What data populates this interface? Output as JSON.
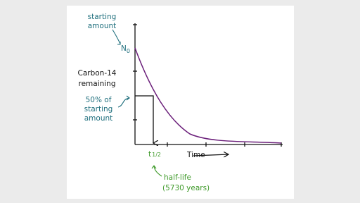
{
  "annotations": {
    "starting_amount": [
      "starting",
      "amount"
    ],
    "initial_symbol": {
      "main": "N",
      "sub": "0"
    },
    "y_axis_label": [
      "Carbon-14",
      "remaining"
    ],
    "half_amount": [
      "50% of",
      "starting",
      "amount"
    ],
    "half_life_symbol": {
      "main": "t",
      "frac": "1/2"
    },
    "x_axis_label": "Time",
    "half_life": [
      "half-life",
      "(5730 years)"
    ]
  }
}
